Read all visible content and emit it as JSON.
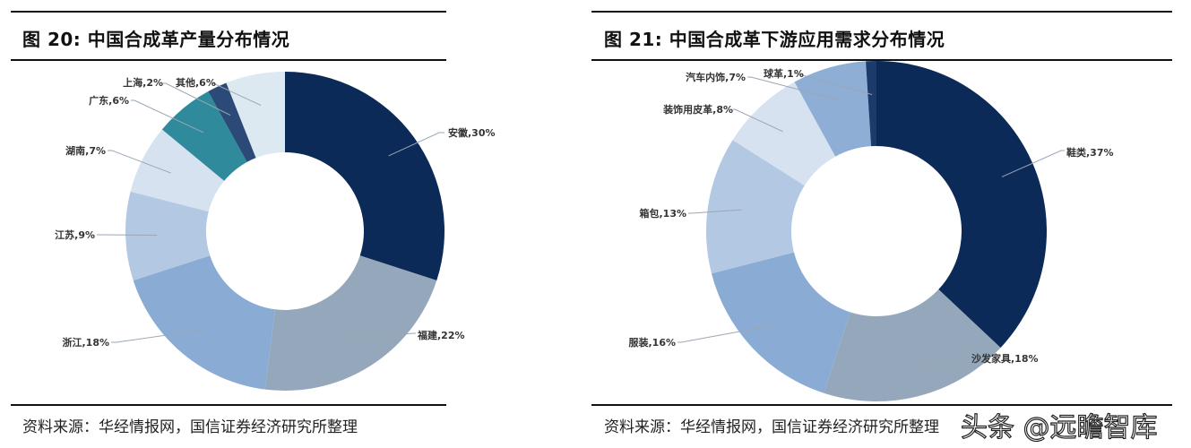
{
  "charts": [
    {
      "title": "图 20:  中国合成革产量分布情况",
      "source": "资料来源：华经情报网，国信证券经济研究所整理"
    },
    {
      "title": "图 21:  中国合成革下游应用需求分布情况",
      "source": "资料来源：华经情报网，国信证券经济研究所整理"
    }
  ],
  "watermark": "头条 @远瞻智库",
  "chart_data": [
    {
      "type": "pie",
      "donut": true,
      "title": "中国合成革产量分布情况",
      "figure_number": "图 20",
      "categories": [
        "安徽",
        "福建",
        "浙江",
        "江苏",
        "湖南",
        "广东",
        "上海",
        "其他"
      ],
      "values": [
        30,
        22,
        18,
        9,
        7,
        6,
        2,
        6
      ],
      "labels": [
        "安徽,30%",
        "福建,22%",
        "浙江,18%",
        "江苏,9%",
        "湖南,7%",
        "广东,6%",
        "上海,2%",
        "其他,6%"
      ],
      "colors": [
        "#0b2a57",
        "#95a7bb",
        "#8aabd4",
        "#b3c8e2",
        "#d7e2f0",
        "#2f8a9c",
        "#2c4a78",
        "#dde9f0"
      ],
      "unit": "%",
      "legend": "none (data labels with leader lines)"
    },
    {
      "type": "pie",
      "donut": true,
      "title": "中国合成革下游应用需求分布情况",
      "figure_number": "图 21",
      "categories": [
        "鞋类",
        "沙发家具",
        "服装",
        "箱包",
        "装饰用皮革",
        "汽车内饰",
        "球革"
      ],
      "values": [
        37,
        18,
        16,
        13,
        8,
        7,
        1
      ],
      "labels": [
        "鞋类,37%",
        "沙发家具,18%",
        "服装,16%",
        "箱包,13%",
        "装饰用皮革,8%",
        "汽车内饰,7%",
        "球革,1%"
      ],
      "colors": [
        "#0b2a57",
        "#95a7bb",
        "#8aabd4",
        "#b3c8e2",
        "#d7e2f0",
        "#8eaed6",
        "#1c3a6a"
      ],
      "unit": "%",
      "legend": "none (data labels with leader lines)"
    }
  ]
}
